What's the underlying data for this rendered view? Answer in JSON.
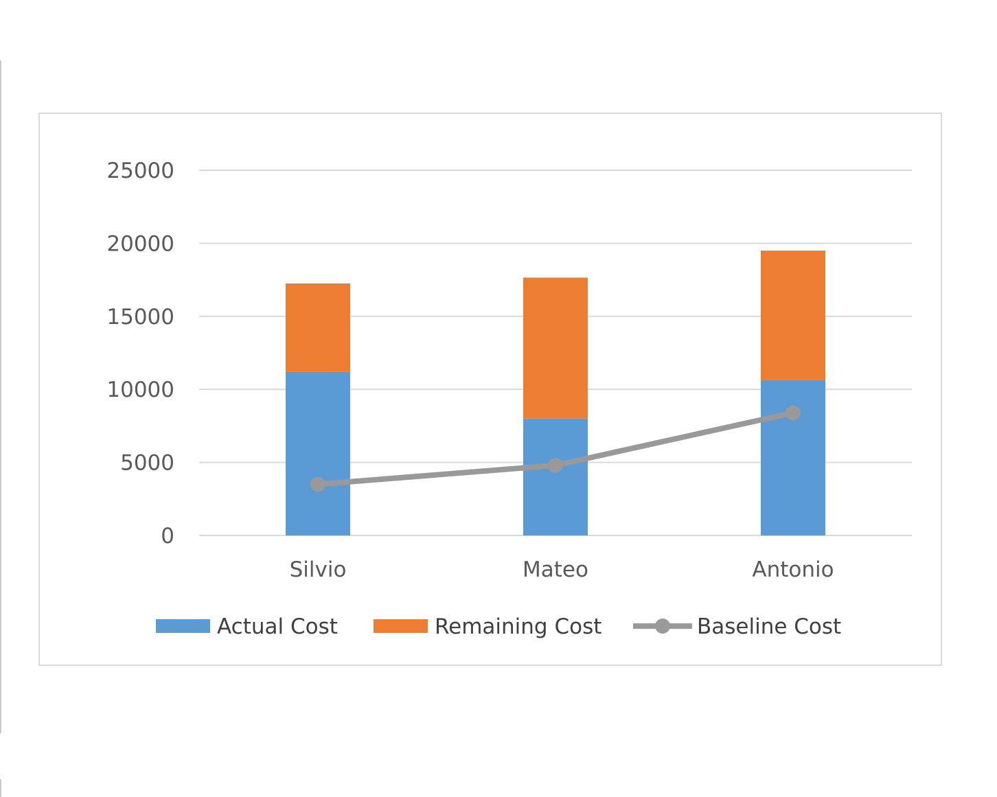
{
  "chart_data": {
    "type": "bar",
    "stacked": true,
    "categories": [
      "Silvio",
      "Mateo",
      "Antonio"
    ],
    "series": [
      {
        "name": "Actual Cost",
        "kind": "bar",
        "color": "#5b9bd5",
        "values": [
          11200,
          8000,
          10650
        ]
      },
      {
        "name": "Remaining Cost",
        "kind": "bar",
        "color": "#ed7d31",
        "values": [
          6050,
          9650,
          8850
        ]
      },
      {
        "name": "Baseline Cost",
        "kind": "line",
        "color": "#999999",
        "marker": "circle",
        "values": [
          3500,
          4800,
          8400
        ]
      }
    ],
    "yticks": [
      "0",
      "5000",
      "10000",
      "15000",
      "20000",
      "25000"
    ],
    "ylim": [
      0,
      25000
    ],
    "grid": true,
    "legend_position": "bottom"
  }
}
